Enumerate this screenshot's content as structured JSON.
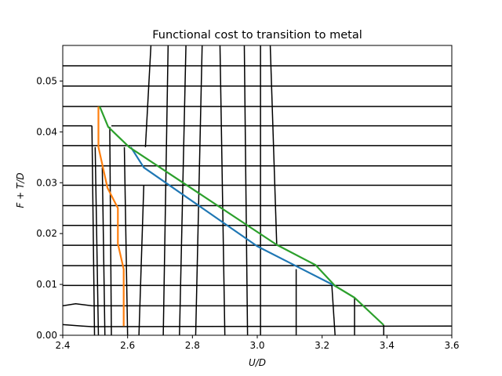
{
  "chart_data": {
    "type": "line",
    "title": "Functional cost to transition to metal",
    "xlabel": "U/D",
    "ylabel": "F + T/D",
    "xlim": [
      2.4,
      3.6
    ],
    "ylim": [
      0.0,
      0.057
    ],
    "grid": false,
    "legend": "none",
    "x_ticks": [
      2.4,
      2.6,
      2.8,
      3.0,
      3.2,
      3.4,
      3.6
    ],
    "x_tick_labels": [
      "2.4",
      "2.6",
      "2.8",
      "3.0",
      "3.2",
      "3.4",
      "3.6"
    ],
    "y_ticks": [
      0.0,
      0.01,
      0.02,
      0.03,
      0.04,
      0.05
    ],
    "y_tick_labels": [
      "0.00",
      "0.01",
      "0.02",
      "0.03",
      "0.04",
      "0.05"
    ],
    "colors": {
      "black": "#000000",
      "blue": "#1f77b4",
      "orange": "#ff7f0e",
      "green": "#2ca02c"
    },
    "series": [
      {
        "color": "#1f77b4",
        "x": [
          2.61,
          2.65,
          3.0,
          3.24
        ],
        "y": [
          0.037,
          0.033,
          0.0175,
          0.0097
        ]
      },
      {
        "color": "#ff7f0e",
        "x": [
          2.51,
          2.51,
          2.538,
          2.57,
          2.57,
          2.588,
          2.588
        ],
        "y": [
          0.045,
          0.037,
          0.029,
          0.025,
          0.018,
          0.013,
          0.0018
        ]
      },
      {
        "color": "#2ca02c",
        "x": [
          2.514,
          2.54,
          2.605,
          2.7,
          3.06,
          3.18,
          3.24,
          3.3,
          3.39
        ],
        "y": [
          0.045,
          0.041,
          0.037,
          0.033,
          0.0178,
          0.0138,
          0.0097,
          0.0074,
          0.002
        ]
      }
    ],
    "contour_levels_y": [
      0.0018,
      0.0058,
      0.0098,
      0.0137,
      0.0177,
      0.0216,
      0.0255,
      0.0295,
      0.0333,
      0.0373,
      0.0412,
      0.045,
      0.049,
      0.053
    ],
    "contour_horizontal": [
      {
        "y": 0.0018,
        "x": [
          2.4,
          3.6
        ],
        "kinks": [
          [
            2.4,
            0.0021
          ],
          [
            2.46,
            0.0018
          ],
          [
            2.49,
            0.0017
          ]
        ]
      },
      {
        "y": 0.0058,
        "x": [
          2.4,
          3.6
        ],
        "kinks": [
          [
            2.4,
            0.0058
          ],
          [
            2.44,
            0.0062
          ],
          [
            2.49,
            0.0058
          ]
        ]
      },
      {
        "y": 0.0098,
        "x": [
          2.4,
          3.6
        ],
        "kinks": []
      },
      {
        "y": 0.0137,
        "x": [
          2.4,
          3.6
        ],
        "kinks": []
      },
      {
        "y": 0.0177,
        "x": [
          2.4,
          3.6
        ],
        "kinks": []
      },
      {
        "y": 0.0216,
        "x": [
          2.4,
          3.6
        ],
        "kinks": []
      },
      {
        "y": 0.0255,
        "x": [
          2.4,
          3.6
        ],
        "kinks": []
      },
      {
        "y": 0.0295,
        "x": [
          2.4,
          3.6
        ],
        "kinks": []
      },
      {
        "y": 0.0333,
        "x": [
          2.4,
          3.6
        ],
        "kinks": []
      },
      {
        "y": 0.0373,
        "x": [
          2.4,
          3.6
        ],
        "kinks": []
      },
      {
        "y": 0.0412,
        "x": [
          2.4,
          2.49
        ],
        "kinks": []
      },
      {
        "y": 0.0412,
        "x": [
          2.55,
          3.6
        ],
        "kinks": []
      },
      {
        "y": 0.045,
        "x": [
          2.4,
          3.6
        ],
        "kinks": []
      },
      {
        "y": 0.049,
        "x": [
          2.4,
          3.6
        ],
        "kinks": []
      },
      {
        "y": 0.053,
        "x": [
          2.4,
          3.6
        ],
        "kinks": []
      }
    ],
    "contour_vertical": [
      {
        "x": [
          2.49,
          2.498
        ],
        "y": [
          0.0412,
          0.0
        ]
      },
      {
        "x": [
          2.5,
          2.51
        ],
        "y": [
          0.037,
          0.0
        ]
      },
      {
        "x": [
          2.522,
          2.53
        ],
        "y": [
          0.033,
          0.0
        ]
      },
      {
        "x": [
          2.545,
          2.55
        ],
        "y": [
          0.041,
          0.0
        ]
      },
      {
        "x": [
          2.59,
          2.6
        ],
        "y": [
          0.037,
          0.0
        ]
      },
      {
        "x": [
          2.65,
          2.635
        ],
        "y": [
          0.0295,
          0.0
        ]
      },
      {
        "x": [
          2.672,
          2.655
        ],
        "y": [
          0.057,
          0.037
        ]
      },
      {
        "x": [
          2.725,
          2.71
        ],
        "y": [
          0.057,
          0.0
        ]
      },
      {
        "x": [
          2.78,
          2.76
        ],
        "y": [
          0.057,
          0.0
        ]
      },
      {
        "x": [
          2.83,
          2.81
        ],
        "y": [
          0.057,
          0.0
        ]
      },
      {
        "x": [
          2.885,
          2.9
        ],
        "y": [
          0.057,
          0.0
        ]
      },
      {
        "x": [
          2.96,
          2.97
        ],
        "y": [
          0.057,
          0.0
        ]
      },
      {
        "x": [
          3.01,
          3.01
        ],
        "y": [
          0.057,
          0.0
        ]
      },
      {
        "x": [
          3.04,
          3.06
        ],
        "y": [
          0.057,
          0.0178
        ]
      },
      {
        "x": [
          3.12,
          3.12
        ],
        "y": [
          0.013,
          0.0
        ]
      },
      {
        "x": [
          3.23,
          3.24
        ],
        "y": [
          0.0098,
          0.0
        ]
      },
      {
        "x": [
          3.3,
          3.3
        ],
        "y": [
          0.0074,
          0.0
        ]
      },
      {
        "x": [
          3.39,
          3.39
        ],
        "y": [
          0.002,
          0.0
        ]
      }
    ]
  }
}
